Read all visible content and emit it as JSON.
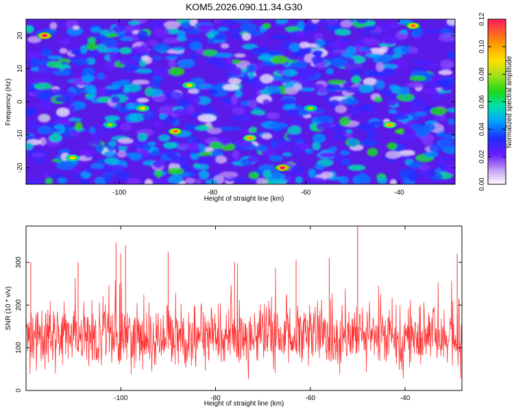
{
  "chart_data": [
    {
      "type": "heatmap",
      "title": "KOM5.2026.090.11.34.G30",
      "xlabel": "Height of straight line (km)",
      "ylabel": "Frequency (Hz)",
      "xlim": [
        -120,
        -28
      ],
      "ylim": [
        -25,
        25
      ],
      "x_ticks": [
        -100,
        -80,
        -60,
        -40
      ],
      "y_ticks": [
        20,
        10,
        0,
        -10,
        -20
      ],
      "colorbar": {
        "label": "Normalized spectral amplitude",
        "range": [
          0,
          0.12
        ],
        "ticks": [
          0.0,
          0.02,
          0.04,
          0.06,
          0.08,
          0.1,
          0.12
        ]
      },
      "description_note": "Dense field of spectral amplitude blobs; most values 0.02-0.05, sparse peaks near 0.10-0.12",
      "peaks": [
        {
          "x": -116,
          "y": 20,
          "v": 0.12
        },
        {
          "x": -37,
          "y": 23,
          "v": 0.11
        },
        {
          "x": -65,
          "y": -20,
          "v": 0.12
        },
        {
          "x": -88,
          "y": -9,
          "v": 0.11
        },
        {
          "x": -42,
          "y": -7,
          "v": 0.1
        },
        {
          "x": -72,
          "y": -11,
          "v": 0.1
        },
        {
          "x": -85,
          "y": 5,
          "v": 0.09
        },
        {
          "x": -95,
          "y": -2,
          "v": 0.09
        },
        {
          "x": -110,
          "y": -17,
          "v": 0.09
        },
        {
          "x": -102,
          "y": -7,
          "v": 0.08
        },
        {
          "x": -59,
          "y": -2,
          "v": 0.08
        }
      ]
    },
    {
      "type": "line",
      "xlabel": "Height of straight line (km)",
      "ylabel": "SNR (10 * v/v)",
      "xlim": [
        -120,
        -28
      ],
      "ylim": [
        0,
        385
      ],
      "x_ticks": [
        -100,
        -80,
        -60,
        -40
      ],
      "y_ticks": [
        0,
        100,
        200,
        300
      ],
      "series": [
        {
          "name": "SNR",
          "color": "#ff3030",
          "baseline": 125,
          "spread": 65,
          "samples": 1100
        }
      ],
      "spikes": [
        {
          "x": -119,
          "y": 300
        },
        {
          "x": -101,
          "y": 345
        },
        {
          "x": -100,
          "y": 320
        },
        {
          "x": -99,
          "y": 340
        },
        {
          "x": -90,
          "y": 325
        },
        {
          "x": -50,
          "y": 385
        },
        {
          "x": -56,
          "y": 310
        },
        {
          "x": -29,
          "y": 320
        },
        {
          "x": -109,
          "y": 300
        },
        {
          "x": -76,
          "y": 300
        },
        {
          "x": -63,
          "y": 305
        }
      ]
    }
  ]
}
